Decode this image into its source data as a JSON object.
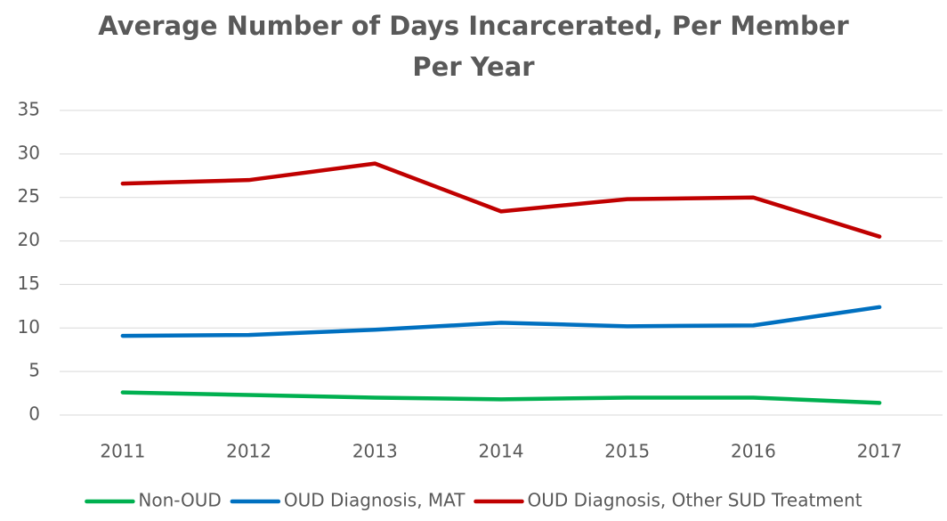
{
  "chart_data": {
    "type": "line",
    "title": "Average Number of Days Incarcerated, Per Member Per Year",
    "categories": [
      "2011",
      "2012",
      "2013",
      "2014",
      "2015",
      "2016",
      "2017"
    ],
    "series": [
      {
        "name": "Non-OUD",
        "color": "#00b050",
        "values": [
          2.6,
          2.3,
          2.0,
          1.8,
          2.0,
          2.0,
          1.4
        ]
      },
      {
        "name": "OUD Diagnosis, MAT",
        "color": "#0070c0",
        "values": [
          9.1,
          9.2,
          9.8,
          10.6,
          10.2,
          10.3,
          12.4
        ]
      },
      {
        "name": "OUD Diagnosis, Other SUD Treatment",
        "color": "#c00000",
        "values": [
          26.6,
          27.0,
          28.9,
          23.4,
          24.8,
          25.0,
          20.5
        ]
      }
    ],
    "ylim": [
      0,
      35
    ],
    "yticks": [
      0,
      5,
      10,
      15,
      20,
      25,
      30,
      35
    ],
    "grid": true,
    "legend": "bottom"
  }
}
